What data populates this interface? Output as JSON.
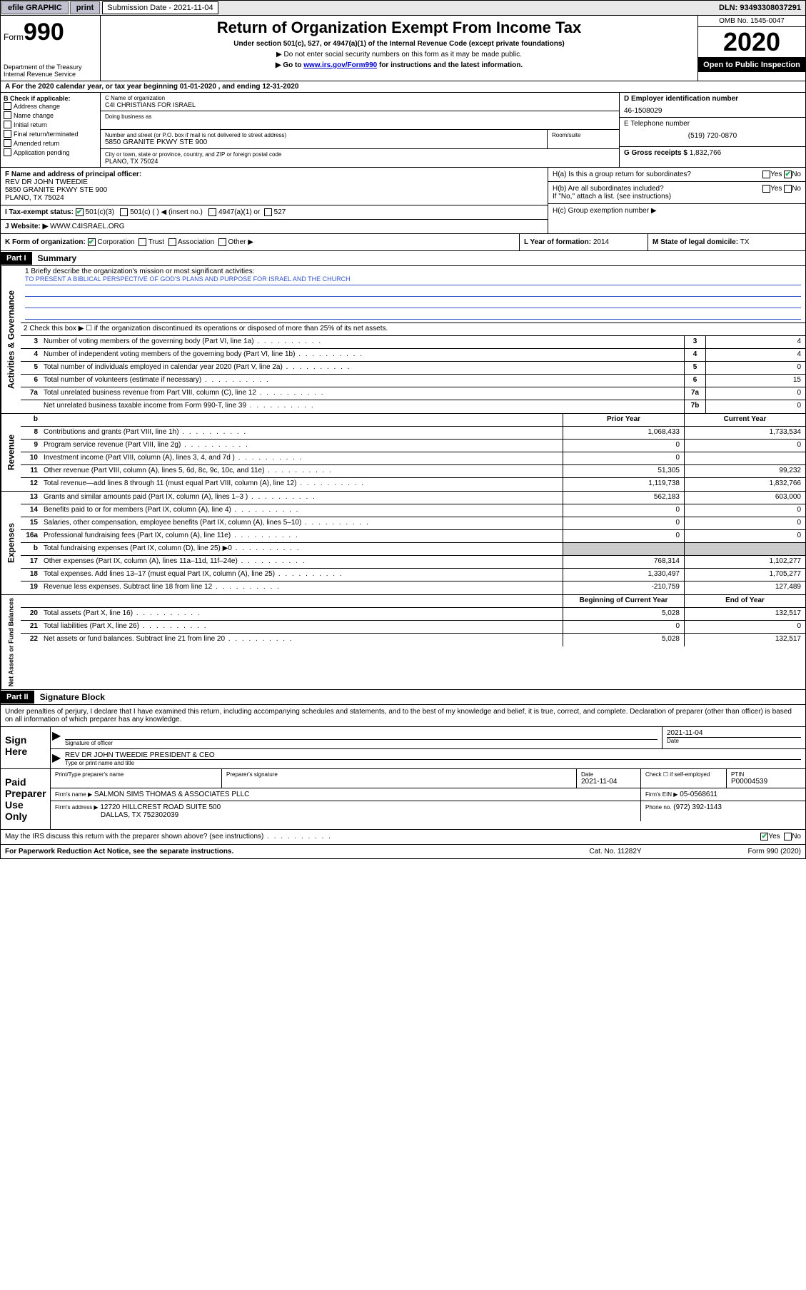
{
  "topbar": {
    "efile": "efile GRAPHIC",
    "print": "print",
    "submission_label": "Submission Date - 2021-11-04",
    "dln": "DLN: 93493308037291"
  },
  "header": {
    "form_word": "Form",
    "form_num": "990",
    "title": "Return of Organization Exempt From Income Tax",
    "subtitle": "Under section 501(c), 527, or 4947(a)(1) of the Internal Revenue Code (except private foundations)",
    "note1": "▶ Do not enter social security numbers on this form as it may be made public.",
    "note2a": "▶ Go to ",
    "note2link": "www.irs.gov/Form990",
    "note2b": " for instructions and the latest information.",
    "dept": "Department of the Treasury\nInternal Revenue Service",
    "omb": "OMB No. 1545-0047",
    "year": "2020",
    "open": "Open to Public Inspection"
  },
  "line_a": "A For the 2020 calendar year, or tax year beginning 01-01-2020      , and ending 12-31-2020",
  "box_b": {
    "header": "B Check if applicable:",
    "items": [
      "Address change",
      "Name change",
      "Initial return",
      "Final return/terminated",
      "Amended return",
      "Application pending"
    ]
  },
  "box_c": {
    "name_label": "C Name of organization",
    "name": "C4I CHRISTIANS FOR ISRAEL",
    "dba_label": "Doing business as",
    "street_label": "Number and street (or P.O. box if mail is not delivered to street address)",
    "room_label": "Room/suite",
    "street": "5850 GRANITE PKWY STE 900",
    "city_label": "City or town, state or province, country, and ZIP or foreign postal code",
    "city": "PLANO, TX   75024"
  },
  "box_d": {
    "label": "D Employer identification number",
    "value": "46-1508029"
  },
  "box_e": {
    "label": "E Telephone number",
    "value": "(519) 720-0870"
  },
  "box_g": {
    "label": "G Gross receipts $",
    "value": "1,832,766"
  },
  "box_f": {
    "label": "F  Name and address of principal officer:",
    "name": "REV DR JOHN TWEEDIE",
    "addr1": "5850 GRANITE PKWY STE 900",
    "addr2": "PLANO, TX   75024"
  },
  "box_h": {
    "a": "H(a)  Is this a group return for subordinates?",
    "b": "H(b)  Are all subordinates included?",
    "bnote": "If \"No,\" attach a list. (see instructions)",
    "c": "H(c)  Group exemption number ▶",
    "yes": "Yes",
    "no": "No"
  },
  "box_i": {
    "label": "I   Tax-exempt status:",
    "c3": "501(c)(3)",
    "c": "501(c) (   ) ◀ (insert no.)",
    "a4947": "4947(a)(1) or",
    "s527": "527"
  },
  "box_j": {
    "label": "J   Website: ▶",
    "value": "WWW.C4ISRAEL.ORG"
  },
  "box_k": {
    "label": "K Form of organization:",
    "corp": "Corporation",
    "trust": "Trust",
    "assoc": "Association",
    "other": "Other ▶"
  },
  "box_l": {
    "label": "L Year of formation:",
    "value": "2014"
  },
  "box_m": {
    "label": "M State of legal domicile:",
    "value": "TX"
  },
  "part1": {
    "tag": "Part I",
    "title": "Summary"
  },
  "summary": {
    "q1_label": "1   Briefly describe the organization's mission or most significant activities:",
    "q1_text": "TO PRESENT A BIBLICAL PERSPECTIVE OF GOD'S PLANS AND PURPOSE FOR ISRAEL AND THE CHURCH",
    "q2": "2   Check this box ▶ ☐  if the organization discontinued its operations or disposed of more than 25% of its net assets.",
    "rows_gov": [
      {
        "n": "3",
        "d": "Number of voting members of the governing body (Part VI, line 1a)",
        "lab": "3",
        "v": "4"
      },
      {
        "n": "4",
        "d": "Number of independent voting members of the governing body (Part VI, line 1b)",
        "lab": "4",
        "v": "4"
      },
      {
        "n": "5",
        "d": "Total number of individuals employed in calendar year 2020 (Part V, line 2a)",
        "lab": "5",
        "v": "0"
      },
      {
        "n": "6",
        "d": "Total number of volunteers (estimate if necessary)",
        "lab": "6",
        "v": "15"
      },
      {
        "n": "7a",
        "d": "Total unrelated business revenue from Part VIII, column (C), line 12",
        "lab": "7a",
        "v": "0"
      },
      {
        "n": "",
        "d": "Net unrelated business taxable income from Form 990-T, line 39",
        "lab": "7b",
        "v": "0"
      }
    ],
    "hdr_b": "b",
    "hdr_prior": "Prior Year",
    "hdr_curr": "Current Year",
    "rows_rev": [
      {
        "n": "8",
        "d": "Contributions and grants (Part VIII, line 1h)",
        "p": "1,068,433",
        "c": "1,733,534"
      },
      {
        "n": "9",
        "d": "Program service revenue (Part VIII, line 2g)",
        "p": "0",
        "c": "0"
      },
      {
        "n": "10",
        "d": "Investment income (Part VIII, column (A), lines 3, 4, and 7d )",
        "p": "0",
        "c": ""
      },
      {
        "n": "11",
        "d": "Other revenue (Part VIII, column (A), lines 5, 6d, 8c, 9c, 10c, and 11e)",
        "p": "51,305",
        "c": "99,232"
      },
      {
        "n": "12",
        "d": "Total revenue—add lines 8 through 11 (must equal Part VIII, column (A), line 12)",
        "p": "1,119,738",
        "c": "1,832,766"
      }
    ],
    "rows_exp": [
      {
        "n": "13",
        "d": "Grants and similar amounts paid (Part IX, column (A), lines 1–3 )",
        "p": "562,183",
        "c": "603,000"
      },
      {
        "n": "14",
        "d": "Benefits paid to or for members (Part IX, column (A), line 4)",
        "p": "0",
        "c": "0"
      },
      {
        "n": "15",
        "d": "Salaries, other compensation, employee benefits (Part IX, column (A), lines 5–10)",
        "p": "0",
        "c": "0"
      },
      {
        "n": "16a",
        "d": "Professional fundraising fees (Part IX, column (A), line 11e)",
        "p": "0",
        "c": "0"
      },
      {
        "n": "b",
        "d": "Total fundraising expenses (Part IX, column (D), line 25) ▶0",
        "p": "",
        "c": "",
        "shaded": true
      },
      {
        "n": "17",
        "d": "Other expenses (Part IX, column (A), lines 11a–11d, 11f–24e)",
        "p": "768,314",
        "c": "1,102,277"
      },
      {
        "n": "18",
        "d": "Total expenses. Add lines 13–17 (must equal Part IX, column (A), line 25)",
        "p": "1,330,497",
        "c": "1,705,277"
      },
      {
        "n": "19",
        "d": "Revenue less expenses. Subtract line 18 from line 12",
        "p": "-210,759",
        "c": "127,489"
      }
    ],
    "hdr_beg": "Beginning of Current Year",
    "hdr_end": "End of Year",
    "rows_net": [
      {
        "n": "20",
        "d": "Total assets (Part X, line 16)",
        "p": "5,028",
        "c": "132,517"
      },
      {
        "n": "21",
        "d": "Total liabilities (Part X, line 26)",
        "p": "0",
        "c": "0"
      },
      {
        "n": "22",
        "d": "Net assets or fund balances. Subtract line 21 from line 20",
        "p": "5,028",
        "c": "132,517"
      }
    ],
    "side_gov": "Activities & Governance",
    "side_rev": "Revenue",
    "side_exp": "Expenses",
    "side_net": "Net Assets or Fund Balances"
  },
  "part2": {
    "tag": "Part II",
    "title": "Signature Block"
  },
  "sig": {
    "intro": "Under penalties of perjury, I declare that I have examined this return, including accompanying schedules and statements, and to the best of my knowledge and belief, it is true, correct, and complete. Declaration of preparer (other than officer) is based on all information of which preparer has any knowledge.",
    "sign_here": "Sign Here",
    "sig_officer": "Signature of officer",
    "date_label": "Date",
    "date": "2021-11-04",
    "officer_name": "REV DR JOHN TWEEDIE  PRESIDENT & CEO",
    "type_name": "Type or print name and title",
    "paid": "Paid Preparer Use Only",
    "prep_name_label": "Print/Type preparer's name",
    "prep_sig_label": "Preparer's signature",
    "prep_date": "2021-11-04",
    "check_self": "Check ☐ if self-employed",
    "ptin_label": "PTIN",
    "ptin": "P00004539",
    "firm_name_label": "Firm's name    ▶",
    "firm_name": "SALMON SIMS THOMAS & ASSOCIATES PLLC",
    "firm_ein_label": "Firm's EIN ▶",
    "firm_ein": "05-0568611",
    "firm_addr_label": "Firm's address ▶",
    "firm_addr1": "12720 HILLCREST ROAD SUITE 500",
    "firm_addr2": "DALLAS, TX   752302039",
    "phone_label": "Phone no.",
    "phone": "(972) 392-1143",
    "discuss": "May the IRS discuss this return with the preparer shown above? (see instructions)",
    "yes": "Yes",
    "no": "No"
  },
  "footer": {
    "left": "For Paperwork Reduction Act Notice, see the separate instructions.",
    "mid": "Cat. No. 11282Y",
    "right": "Form 990 (2020)"
  }
}
